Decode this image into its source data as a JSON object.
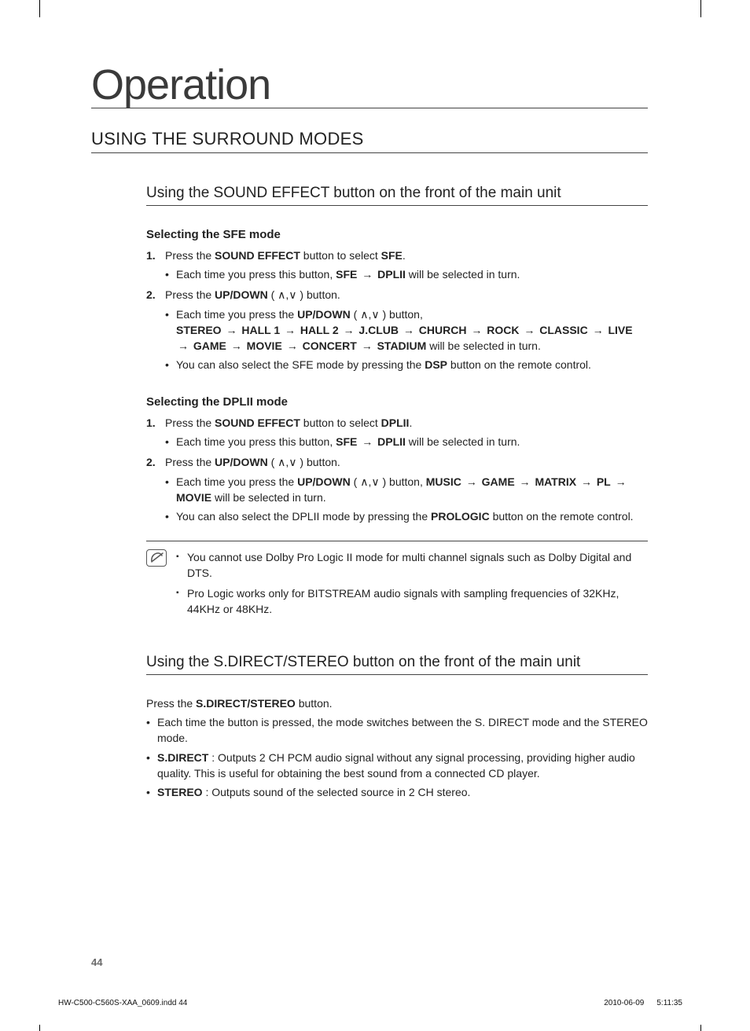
{
  "chapter_title": "Operation",
  "section_title": "USING THE SURROUND MODES",
  "sub1_title": "Using the SOUND EFFECT button on the front of the main unit",
  "sfe": {
    "heading": "Selecting the SFE mode",
    "step1_pre": "Press the ",
    "step1_btn": "SOUND EFFECT",
    "step1_mid": " button to select ",
    "step1_sel": "SFE",
    "step1_post": ".",
    "s1b1_pre": "Each time you press this button, ",
    "s1b1_a": "SFE",
    "s1b1_b": "DPLII",
    "s1b1_post": "  will be selected in turn.",
    "step2_pre": "Press the ",
    "step2_btn": "UP/DOWN",
    "step2_paren_open": " ( ",
    "step2_comma": ",",
    "step2_paren_close": " )  button.",
    "s2b1_pre": "Each time you press the ",
    "s2b1_btn": "UP/DOWN",
    "s2b1_paren": " ( ",
    "s2b1_comma": ",",
    "s2b1_paren2": " ) button,",
    "seq": [
      "STEREO",
      "HALL 1",
      "HALL 2",
      "J.CLUB",
      "CHURCH",
      "ROCK",
      "CLASSIC",
      "LIVE",
      "GAME",
      "MOVIE",
      "CONCERT",
      "STADIUM"
    ],
    "s2b1_tail": " will be selected in turn.",
    "s2b2_pre": "You can also select the SFE mode by pressing the ",
    "s2b2_btn": "DSP",
    "s2b2_post": " button on the remote control."
  },
  "dplii": {
    "heading": "Selecting the DPLII mode",
    "step1_pre": "Press the ",
    "step1_btn": "SOUND EFFECT",
    "step1_mid": " button  to select ",
    "step1_sel": "DPLII",
    "step1_post": ".",
    "s1b1_pre": "Each time you press this button, ",
    "s1b1_a": "SFE",
    "s1b1_b": "DPLII",
    "s1b1_post": "  will be selected in turn.",
    "step2_pre": "Press the ",
    "step2_btn": "UP/DOWN",
    "step2_paren_open": " ( ",
    "step2_comma": ",",
    "step2_paren_close": " ) button.",
    "s2b1_pre": "Each time you press the ",
    "s2b1_btn": "UP/DOWN",
    "s2b1_paren": " ( ",
    "s2b1_comma": ",",
    "s2b1_paren2": " ) button, ",
    "seq": [
      "MUSIC",
      "GAME",
      "MATRIX",
      "PL",
      "MOVIE"
    ],
    "s2b1_tail": " will be selected in turn.",
    "s2b2_pre": "You can also select the DPLII mode by pressing the ",
    "s2b2_btn": "PROLOGIC",
    "s2b2_post": " button on the remote control."
  },
  "notes": {
    "n1": "You cannot use Dolby Pro Logic II mode for multi channel signals such as Dolby Digital and DTS.",
    "n2": "Pro Logic works only for BITSTREAM audio signals with sampling frequencies of 32KHz, 44KHz or 48KHz."
  },
  "sub2_title": "Using the S.DIRECT/STEREO button on the front of the main unit",
  "sdirect": {
    "press_pre": "Press the ",
    "press_btn": "S.DIRECT/STEREO",
    "press_post": " button.",
    "b1": "Each time the button is pressed, the mode switches between the S. DIRECT mode and the STEREO mode.",
    "b2_lbl": "S.DIRECT",
    "b2_txt": " : Outputs 2 CH PCM audio signal without any signal processing, providing higher audio quality. This is useful for obtaining the best sound from a connected CD player.",
    "b3_lbl": "STEREO",
    "b3_txt": " : Outputs sound of the selected source in 2 CH stereo."
  },
  "page_number": "44",
  "footer_file": "HW-C500-C560S-XAA_0609.indd   44",
  "footer_date": "2010-06-09",
  "footer_time": "5:11:35"
}
